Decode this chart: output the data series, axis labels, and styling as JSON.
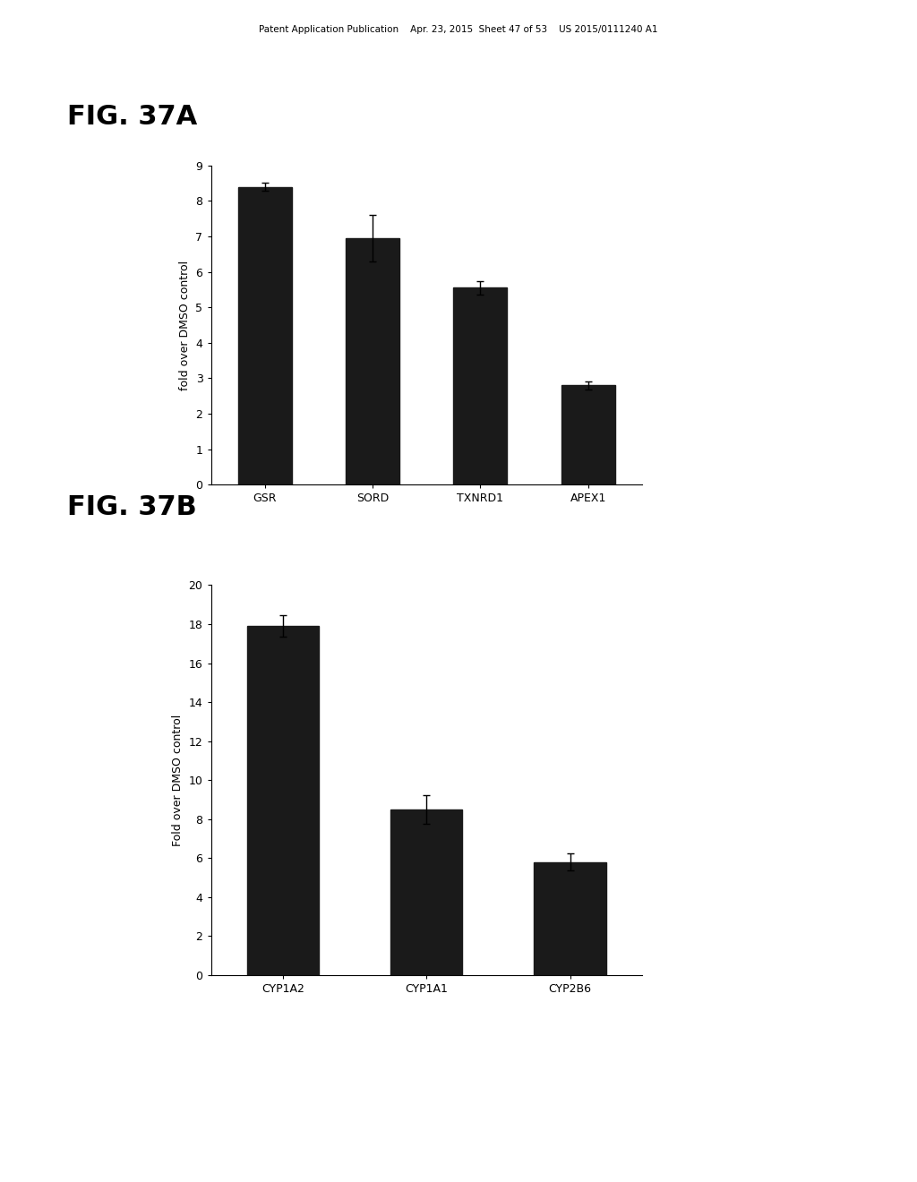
{
  "fig_label_a": "FIG. 37A",
  "fig_label_b": "FIG. 37B",
  "header_text": "Patent Application Publication    Apr. 23, 2015  Sheet 47 of 53    US 2015/0111240 A1",
  "chart_a": {
    "categories": [
      "GSR",
      "SORD",
      "TXNRD1",
      "APEX1"
    ],
    "values": [
      8.4,
      6.95,
      5.55,
      2.8
    ],
    "errors": [
      0.12,
      0.65,
      0.18,
      0.12
    ],
    "ylabel": "fold over DMSO control",
    "ylim": [
      0,
      9
    ],
    "yticks": [
      0,
      1,
      2,
      3,
      4,
      5,
      6,
      7,
      8,
      9
    ],
    "bar_color": "#1a1a1a",
    "bar_width": 0.5
  },
  "chart_b": {
    "categories": [
      "CYP1A2",
      "CYP1A1",
      "CYP2B6"
    ],
    "values": [
      17.9,
      8.5,
      5.8
    ],
    "errors": [
      0.55,
      0.75,
      0.45
    ],
    "ylabel": "Fold over DMSO control",
    "ylim": [
      0,
      20
    ],
    "yticks": [
      0,
      2,
      4,
      6,
      8,
      10,
      12,
      14,
      16,
      18,
      20
    ],
    "bar_color": "#1a1a1a",
    "bar_width": 0.5
  },
  "background_color": "#ffffff",
  "fig_label_fontsize": 22,
  "axis_label_fontsize": 9,
  "tick_fontsize": 9,
  "header_fontsize": 7.5
}
